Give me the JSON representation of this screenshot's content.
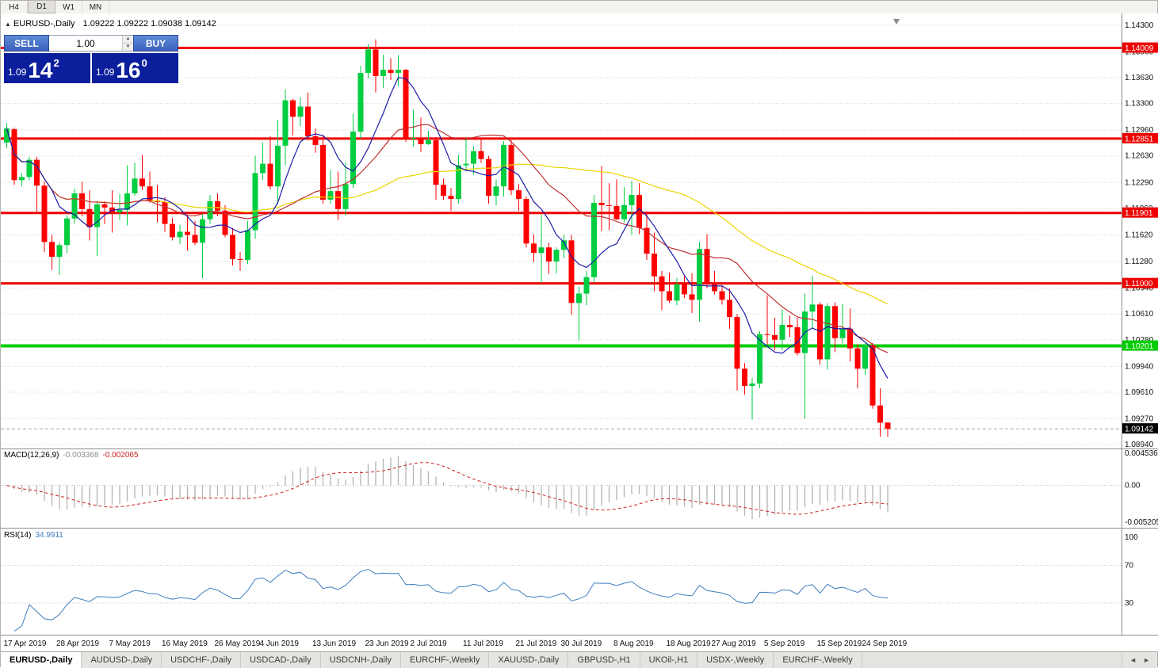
{
  "toolbar": {
    "timeframes": [
      "H4",
      "D1",
      "W1",
      "MN"
    ],
    "active": "D1"
  },
  "chart_header": {
    "collapse_icon": "▲",
    "symbol": "EURUSD-,Daily",
    "ohlc": "1.09222 1.09222 1.09038 1.09142"
  },
  "trade_panel": {
    "sell_label": "SELL",
    "buy_label": "BUY",
    "volume": "1.00",
    "sell_price": {
      "prefix": "1.09",
      "big": "14",
      "sup": "2"
    },
    "buy_price": {
      "prefix": "1.09",
      "big": "16",
      "sup": "0"
    }
  },
  "icons": {
    "spinner_up": "▲",
    "spinner_down": "▼",
    "tab_scroll_left": "◄",
    "tab_scroll_right": "►"
  },
  "price_axis": {
    "labels": [
      "1.14300",
      "1.13960",
      "1.13630",
      "1.13300",
      "1.12960",
      "1.12630",
      "1.12290",
      "1.11960",
      "1.11620",
      "1.11280",
      "1.10940",
      "1.10610",
      "1.10280",
      "1.09940",
      "1.09610",
      "1.09270",
      "1.08940"
    ],
    "badges": [
      {
        "text": "1.14009",
        "color": "#ee0000",
        "role": "resistance-line-price"
      },
      {
        "text": "1.12851",
        "color": "#ee0000",
        "role": "resistance-line-price"
      },
      {
        "text": "1.11901",
        "color": "#ee0000",
        "role": "resistance-line-price"
      },
      {
        "text": "1.11000",
        "color": "#ee0000",
        "role": "resistance-line-price"
      },
      {
        "text": "1.10201",
        "color": "#00cc00",
        "role": "support-line-price"
      },
      {
        "text": "1.09142",
        "color": "#000000",
        "role": "current-price"
      }
    ]
  },
  "macd_pane": {
    "label": "MACD(12,26,9)",
    "value_main": "-0.003368",
    "value_signal": "-0.002065",
    "axis": [
      "0.004536",
      "0.00",
      "-0.005205"
    ]
  },
  "rsi_pane": {
    "label": "RSI(14)",
    "value": "34.9911",
    "axis": [
      "100",
      "70",
      "30"
    ]
  },
  "tabs": {
    "items": [
      {
        "label": "EURUSD-,Daily",
        "active": true
      },
      {
        "label": "AUDUSD-,Daily",
        "active": false
      },
      {
        "label": "USDCHF-,Daily",
        "active": false
      },
      {
        "label": "USDCAD-,Daily",
        "active": false
      },
      {
        "label": "USDCNH-,Daily",
        "active": false
      },
      {
        "label": "EURCHF-,Weekly",
        "active": false
      },
      {
        "label": "XAUUSD-,Daily",
        "active": false
      },
      {
        "label": "GBPUSD-,H1",
        "active": false
      },
      {
        "label": "UKOil-,H1",
        "active": false
      },
      {
        "label": "USDX-,Weekly",
        "active": false
      },
      {
        "label": "EURCHF-,Weekly",
        "active": false
      }
    ]
  },
  "chart_data": {
    "type": "candlestick",
    "title": "EURUSD-,Daily",
    "bull_color": "#00cd40",
    "bear_color": "#ff0000",
    "price_range": {
      "min": 1.0889,
      "max": 1.1445
    },
    "time_axis": [
      {
        "text": "17 Apr 2019",
        "i": 0
      },
      {
        "text": "28 Apr 2019",
        "i": 7
      },
      {
        "text": "7 May 2019",
        "i": 14
      },
      {
        "text": "16 May 2019",
        "i": 21
      },
      {
        "text": "26 May 2019",
        "i": 28
      },
      {
        "text": "4 Jun 2019",
        "i": 34
      },
      {
        "text": "13 Jun 2019",
        "i": 41
      },
      {
        "text": "23 Jun 2019",
        "i": 48
      },
      {
        "text": "2 Jul 2019",
        "i": 54
      },
      {
        "text": "11 Jul 2019",
        "i": 61
      },
      {
        "text": "21 Jul 2019",
        "i": 68
      },
      {
        "text": "30 Jul 2019",
        "i": 74
      },
      {
        "text": "8 Aug 2019",
        "i": 81
      },
      {
        "text": "18 Aug 2019",
        "i": 88
      },
      {
        "text": "27 Aug 2019",
        "i": 94
      },
      {
        "text": "5 Sep 2019",
        "i": 101
      },
      {
        "text": "15 Sep 2019",
        "i": 108
      },
      {
        "text": "24 Sep 2019",
        "i": 114
      }
    ],
    "overlays": {
      "moving_averages": [
        {
          "period": 7,
          "color": "#1a1aa8"
        },
        {
          "period": 20,
          "color": "#c03030"
        },
        {
          "period": 45,
          "color": "#ead500"
        }
      ],
      "hlines": [
        {
          "price": 1.14009,
          "color": "#ee0000",
          "width": 3
        },
        {
          "price": 1.12851,
          "color": "#ee0000",
          "width": 3
        },
        {
          "price": 1.11901,
          "color": "#ee0000",
          "width": 3
        },
        {
          "price": 1.11,
          "color": "#ee0000",
          "width": 3
        },
        {
          "price": 1.10201,
          "color": "#00cc00",
          "width": 4
        }
      ],
      "current_price": 1.09142
    },
    "indicators": {
      "macd": {
        "params": [
          12,
          26,
          9
        ],
        "last_main": -0.003368,
        "last_signal": -0.002065,
        "axis_max": 0.004536,
        "axis_min": -0.005205,
        "histogram_color": "#b3b3b3",
        "signal_color": "#cc2222"
      },
      "rsi": {
        "period": 14,
        "last": 34.9911,
        "levels": [
          70,
          30
        ],
        "line_color": "#3f7cbf"
      }
    },
    "candles": [
      [
        1.128,
        1.1305,
        1.1273,
        1.1298
      ],
      [
        1.1297,
        1.1299,
        1.1226,
        1.1232
      ],
      [
        1.1232,
        1.1241,
        1.1224,
        1.1236
      ],
      [
        1.1236,
        1.1262,
        1.1232,
        1.1258
      ],
      [
        1.1258,
        1.1262,
        1.1192,
        1.1225
      ],
      [
        1.1225,
        1.123,
        1.114,
        1.1153
      ],
      [
        1.1153,
        1.1162,
        1.1117,
        1.1134
      ],
      [
        1.1134,
        1.1152,
        1.1111,
        1.1149
      ],
      [
        1.1149,
        1.1187,
        1.1139,
        1.1183
      ],
      [
        1.1183,
        1.1221,
        1.1176,
        1.1215
      ],
      [
        1.1215,
        1.123,
        1.1186,
        1.1195
      ],
      [
        1.1195,
        1.1219,
        1.1155,
        1.1172
      ],
      [
        1.1172,
        1.1205,
        1.1135,
        1.1201
      ],
      [
        1.1201,
        1.1205,
        1.1176,
        1.1197
      ],
      [
        1.1197,
        1.1219,
        1.1165,
        1.1191
      ],
      [
        1.1191,
        1.1214,
        1.1181,
        1.1194
      ],
      [
        1.1194,
        1.1251,
        1.1174,
        1.1215
      ],
      [
        1.1215,
        1.1254,
        1.1212,
        1.1234
      ],
      [
        1.1234,
        1.1264,
        1.1219,
        1.1224
      ],
      [
        1.1224,
        1.1243,
        1.1203,
        1.1206
      ],
      [
        1.1206,
        1.1226,
        1.1178,
        1.1204
      ],
      [
        1.1204,
        1.121,
        1.1166,
        1.1176
      ],
      [
        1.1176,
        1.1184,
        1.1155,
        1.1159
      ],
      [
        1.1159,
        1.1175,
        1.115,
        1.1166
      ],
      [
        1.1166,
        1.1188,
        1.1142,
        1.1162
      ],
      [
        1.1162,
        1.118,
        1.1149,
        1.1152
      ],
      [
        1.1152,
        1.1188,
        1.1107,
        1.1182
      ],
      [
        1.1182,
        1.1213,
        1.1176,
        1.1205
      ],
      [
        1.1205,
        1.1215,
        1.1186,
        1.1193
      ],
      [
        1.1193,
        1.12,
        1.1159,
        1.1162
      ],
      [
        1.1162,
        1.1171,
        1.1123,
        1.1131
      ],
      [
        1.1131,
        1.114,
        1.1116,
        1.113
      ],
      [
        1.113,
        1.118,
        1.1125,
        1.1168
      ],
      [
        1.1168,
        1.1263,
        1.1157,
        1.1241
      ],
      [
        1.1241,
        1.128,
        1.1232,
        1.1253
      ],
      [
        1.1253,
        1.1288,
        1.122,
        1.1224
      ],
      [
        1.1224,
        1.1309,
        1.1201,
        1.1276
      ],
      [
        1.1276,
        1.1348,
        1.1251,
        1.1334
      ],
      [
        1.1334,
        1.1336,
        1.1289,
        1.1313
      ],
      [
        1.1313,
        1.1338,
        1.1301,
        1.1326
      ],
      [
        1.1326,
        1.1344,
        1.1283,
        1.1288
      ],
      [
        1.1288,
        1.1298,
        1.1267,
        1.1277
      ],
      [
        1.1277,
        1.129,
        1.1202,
        1.1207
      ],
      [
        1.1207,
        1.1245,
        1.1202,
        1.1218
      ],
      [
        1.1218,
        1.1243,
        1.1181,
        1.1195
      ],
      [
        1.1195,
        1.1255,
        1.1187,
        1.1227
      ],
      [
        1.1227,
        1.1317,
        1.1222,
        1.1294
      ],
      [
        1.1294,
        1.1378,
        1.1285,
        1.1369
      ],
      [
        1.1369,
        1.1406,
        1.1362,
        1.1399
      ],
      [
        1.1399,
        1.1412,
        1.1344,
        1.1365
      ],
      [
        1.1365,
        1.1392,
        1.135,
        1.1373
      ],
      [
        1.1373,
        1.1388,
        1.136,
        1.1369
      ],
      [
        1.1369,
        1.1392,
        1.1352,
        1.1373
      ],
      [
        1.1373,
        1.1374,
        1.1281,
        1.1285
      ],
      [
        1.1285,
        1.1322,
        1.1275,
        1.1286
      ],
      [
        1.1286,
        1.1312,
        1.1268,
        1.1278
      ],
      [
        1.1278,
        1.1295,
        1.1277,
        1.1283
      ],
      [
        1.1283,
        1.1287,
        1.1207,
        1.1226
      ],
      [
        1.1226,
        1.1234,
        1.1207,
        1.1212
      ],
      [
        1.1212,
        1.1222,
        1.1193,
        1.1208
      ],
      [
        1.1208,
        1.1264,
        1.1202,
        1.1251
      ],
      [
        1.1251,
        1.1286,
        1.1243,
        1.1253
      ],
      [
        1.1253,
        1.1275,
        1.1239,
        1.1269
      ],
      [
        1.1269,
        1.1285,
        1.1254,
        1.1259
      ],
      [
        1.1259,
        1.1263,
        1.1202,
        1.1212
      ],
      [
        1.1212,
        1.1233,
        1.12,
        1.1224
      ],
      [
        1.1224,
        1.1282,
        1.1211,
        1.1277
      ],
      [
        1.1277,
        1.1283,
        1.1213,
        1.1219
      ],
      [
        1.1219,
        1.1227,
        1.1193,
        1.1208
      ],
      [
        1.1208,
        1.1211,
        1.1146,
        1.1151
      ],
      [
        1.1151,
        1.1163,
        1.1127,
        1.1139
      ],
      [
        1.1139,
        1.1188,
        1.1101,
        1.1146
      ],
      [
        1.1146,
        1.1152,
        1.1112,
        1.1128
      ],
      [
        1.1128,
        1.1146,
        1.1113,
        1.1143
      ],
      [
        1.1143,
        1.1162,
        1.1132,
        1.1155
      ],
      [
        1.1155,
        1.1162,
        1.106,
        1.1075
      ],
      [
        1.1075,
        1.1096,
        1.1027,
        1.1087
      ],
      [
        1.1087,
        1.1116,
        1.1072,
        1.1108
      ],
      [
        1.1108,
        1.1213,
        1.1101,
        1.1203
      ],
      [
        1.1203,
        1.125,
        1.1167,
        1.12
      ],
      [
        1.12,
        1.1228,
        1.1168,
        1.1199
      ],
      [
        1.1199,
        1.1233,
        1.1181,
        1.1182
      ],
      [
        1.1182,
        1.1223,
        1.1178,
        1.12
      ],
      [
        1.12,
        1.1231,
        1.1162,
        1.1213
      ],
      [
        1.1213,
        1.1228,
        1.1163,
        1.1171
      ],
      [
        1.1171,
        1.1192,
        1.113,
        1.1138
      ],
      [
        1.1138,
        1.1165,
        1.109,
        1.1109
      ],
      [
        1.1109,
        1.1116,
        1.1066,
        1.109
      ],
      [
        1.109,
        1.1114,
        1.1075,
        1.1078
      ],
      [
        1.1078,
        1.1107,
        1.1072,
        1.1099
      ],
      [
        1.1099,
        1.1109,
        1.1081,
        1.1086
      ],
      [
        1.1086,
        1.1113,
        1.1062,
        1.1079
      ],
      [
        1.1079,
        1.1153,
        1.1051,
        1.1144
      ],
      [
        1.1144,
        1.1163,
        1.1094,
        1.1101
      ],
      [
        1.1101,
        1.1116,
        1.1086,
        1.109
      ],
      [
        1.109,
        1.1098,
        1.1073,
        1.1079
      ],
      [
        1.1079,
        1.1094,
        1.1042,
        1.1057
      ],
      [
        1.1057,
        1.1061,
        1.0963,
        1.0991
      ],
      [
        1.0991,
        1.0998,
        1.0958,
        1.0969
      ],
      [
        1.0969,
        1.0979,
        1.0926,
        1.0972
      ],
      [
        1.0972,
        1.1039,
        1.0966,
        1.1035
      ],
      [
        1.1035,
        1.1085,
        1.1022,
        1.1034
      ],
      [
        1.1034,
        1.1056,
        1.1015,
        1.1028
      ],
      [
        1.1028,
        1.1067,
        1.1015,
        1.1047
      ],
      [
        1.1047,
        1.1059,
        1.1031,
        1.1044
      ],
      [
        1.1044,
        1.1056,
        1.1008,
        1.1011
      ],
      [
        1.1011,
        1.1087,
        1.0927,
        1.1064
      ],
      [
        1.1064,
        1.111,
        1.1043,
        1.1073
      ],
      [
        1.1073,
        1.1076,
        1.0996,
        1.1003
      ],
      [
        1.1003,
        1.1075,
        1.099,
        1.1071
      ],
      [
        1.1071,
        1.1076,
        1.1012,
        1.103
      ],
      [
        1.103,
        1.1074,
        1.1023,
        1.1042
      ],
      [
        1.1042,
        1.1068,
        1.1,
        1.1017
      ],
      [
        1.1017,
        1.1022,
        1.0966,
        1.0991
      ],
      [
        1.0991,
        1.1024,
        1.0983,
        1.1021
      ],
      [
        1.1021,
        1.1024,
        1.094,
        1.0944
      ],
      [
        1.0944,
        1.0966,
        1.0904,
        1.0922
      ],
      [
        1.09222,
        1.09222,
        1.09038,
        1.09142
      ]
    ]
  }
}
